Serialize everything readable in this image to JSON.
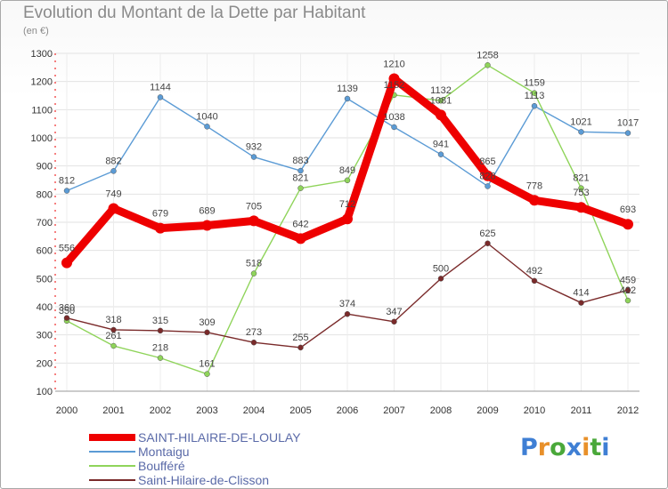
{
  "header": {
    "title": "Evolution du Montant de la Dette par Habitant",
    "subtitle": "(en €)"
  },
  "logo": {
    "text": "Proxiti",
    "letter_colors": [
      "#3f7fd4",
      "#e8902a",
      "#4aa83a",
      "#3f7fd4",
      "#e8902a",
      "#4aa83a",
      "#3f7fd4"
    ]
  },
  "chart_data": {
    "type": "line",
    "title": "Evolution du Montant de la Dette par Habitant",
    "subtitle": "(en €)",
    "xlabel": "",
    "ylabel": "",
    "ylim": [
      100,
      1300
    ],
    "yticks": [
      100,
      200,
      300,
      400,
      500,
      600,
      700,
      800,
      900,
      1000,
      1100,
      1200,
      1300
    ],
    "grid": true,
    "legend_position": "bottom-left",
    "x": [
      "2000",
      "2001",
      "2002",
      "2003",
      "2004",
      "2005",
      "2006",
      "2007",
      "2008",
      "2009",
      "2010",
      "2011",
      "2012"
    ],
    "series": [
      {
        "name": "SAINT-HILAIRE-DE-LOULAY",
        "color": "#ee0000",
        "thick": true,
        "values": [
          556,
          749,
          679,
          689,
          705,
          642,
          712,
          1210,
          1081,
          865,
          778,
          753,
          693
        ]
      },
      {
        "name": "Montaigu",
        "color": "#5b9bd5",
        "thick": false,
        "values": [
          812,
          882,
          1144,
          1040,
          932,
          883,
          1139,
          1038,
          941,
          828,
          1113,
          1021,
          1017
        ]
      },
      {
        "name": "Boufféré",
        "color": "#8fd45a",
        "thick": false,
        "values": [
          350,
          261,
          218,
          161,
          518,
          821,
          849,
          1152,
          1132,
          1258,
          1159,
          821,
          422
        ]
      },
      {
        "name": "Saint-Hilaire-de-Clisson",
        "color": "#7a2a2a",
        "thick": false,
        "values": [
          360,
          318,
          315,
          309,
          273,
          255,
          374,
          347,
          500,
          625,
          492,
          414,
          459
        ]
      }
    ]
  }
}
